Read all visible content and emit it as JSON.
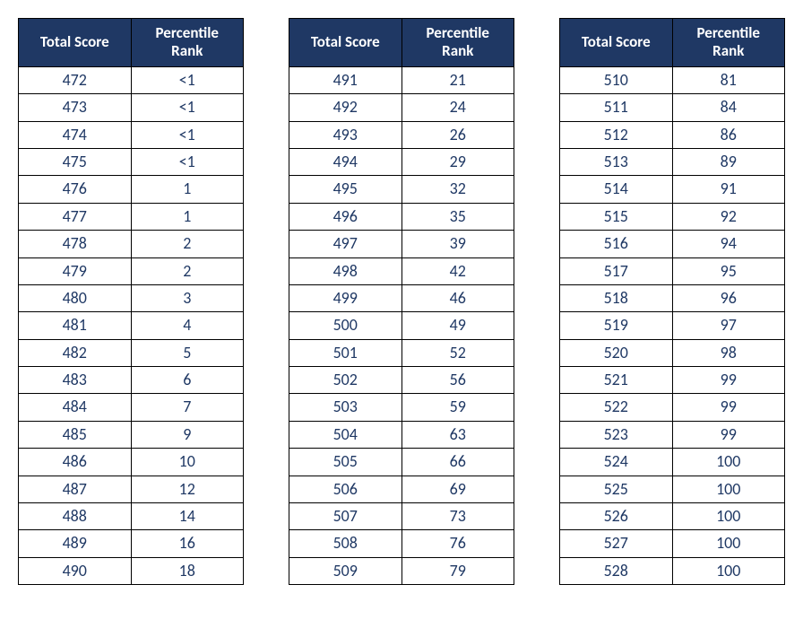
{
  "headers": {
    "score": "Total Score",
    "rank": "Percentile Rank"
  },
  "tables": [
    {
      "rows": [
        {
          "score": "472",
          "rank": "<1"
        },
        {
          "score": "473",
          "rank": "<1"
        },
        {
          "score": "474",
          "rank": "<1"
        },
        {
          "score": "475",
          "rank": "<1"
        },
        {
          "score": "476",
          "rank": "1"
        },
        {
          "score": "477",
          "rank": "1"
        },
        {
          "score": "478",
          "rank": "2"
        },
        {
          "score": "479",
          "rank": "2"
        },
        {
          "score": "480",
          "rank": "3"
        },
        {
          "score": "481",
          "rank": "4"
        },
        {
          "score": "482",
          "rank": "5"
        },
        {
          "score": "483",
          "rank": "6"
        },
        {
          "score": "484",
          "rank": "7"
        },
        {
          "score": "485",
          "rank": "9"
        },
        {
          "score": "486",
          "rank": "10"
        },
        {
          "score": "487",
          "rank": "12"
        },
        {
          "score": "488",
          "rank": "14"
        },
        {
          "score": "489",
          "rank": "16"
        },
        {
          "score": "490",
          "rank": "18"
        }
      ]
    },
    {
      "rows": [
        {
          "score": "491",
          "rank": "21"
        },
        {
          "score": "492",
          "rank": "24"
        },
        {
          "score": "493",
          "rank": "26"
        },
        {
          "score": "494",
          "rank": "29"
        },
        {
          "score": "495",
          "rank": "32"
        },
        {
          "score": "496",
          "rank": "35"
        },
        {
          "score": "497",
          "rank": "39"
        },
        {
          "score": "498",
          "rank": "42"
        },
        {
          "score": "499",
          "rank": "46"
        },
        {
          "score": "500",
          "rank": "49"
        },
        {
          "score": "501",
          "rank": "52"
        },
        {
          "score": "502",
          "rank": "56"
        },
        {
          "score": "503",
          "rank": "59"
        },
        {
          "score": "504",
          "rank": "63"
        },
        {
          "score": "505",
          "rank": "66"
        },
        {
          "score": "506",
          "rank": "69"
        },
        {
          "score": "507",
          "rank": "73"
        },
        {
          "score": "508",
          "rank": "76"
        },
        {
          "score": "509",
          "rank": "79"
        }
      ]
    },
    {
      "rows": [
        {
          "score": "510",
          "rank": "81"
        },
        {
          "score": "511",
          "rank": "84"
        },
        {
          "score": "512",
          "rank": "86"
        },
        {
          "score": "513",
          "rank": "89"
        },
        {
          "score": "514",
          "rank": "91"
        },
        {
          "score": "515",
          "rank": "92"
        },
        {
          "score": "516",
          "rank": "94"
        },
        {
          "score": "517",
          "rank": "95"
        },
        {
          "score": "518",
          "rank": "96"
        },
        {
          "score": "519",
          "rank": "97"
        },
        {
          "score": "520",
          "rank": "98"
        },
        {
          "score": "521",
          "rank": "99"
        },
        {
          "score": "522",
          "rank": "99"
        },
        {
          "score": "523",
          "rank": "99"
        },
        {
          "score": "524",
          "rank": "100"
        },
        {
          "score": "525",
          "rank": "100"
        },
        {
          "score": "526",
          "rank": "100"
        },
        {
          "score": "527",
          "rank": "100"
        },
        {
          "score": "528",
          "rank": "100"
        }
      ]
    }
  ]
}
